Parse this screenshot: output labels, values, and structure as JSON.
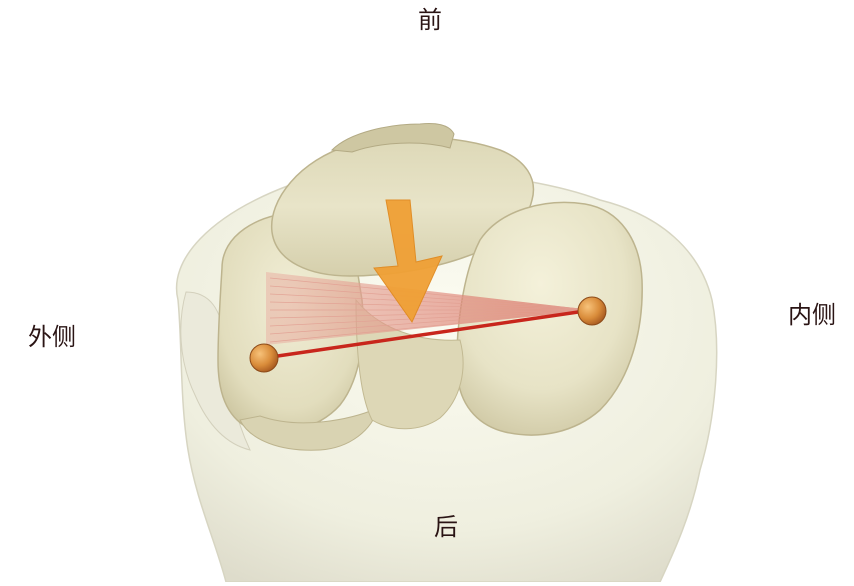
{
  "labels": {
    "front": "前",
    "back": "后",
    "lateral": "外侧",
    "medial": "内侧"
  },
  "colors": {
    "background": "#ffffff",
    "outer_bone": "#efefdf",
    "condyle_lit": "#e7e3c6",
    "condyle_shade": "#cfc8a4",
    "ligament_fan": "#e3a79a",
    "ligament_line": "#c8261c",
    "attachment_point": "#d98c3a",
    "force_arrow": "#f0a035",
    "label_text": "#2a1414"
  },
  "icons": {
    "force_arrow": "down-arrow-icon",
    "attachment_point": "sphere-marker-icon"
  }
}
